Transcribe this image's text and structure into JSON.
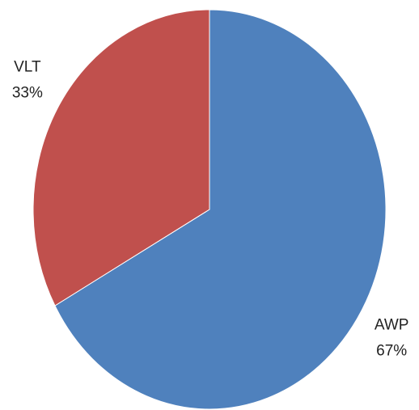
{
  "chart_data": {
    "type": "pie",
    "categories": [
      "AWP",
      "VLT"
    ],
    "values": [
      67,
      33
    ],
    "value_labels": [
      "67%",
      "33%"
    ],
    "colors": [
      "#4f81bd",
      "#c0504d"
    ]
  }
}
